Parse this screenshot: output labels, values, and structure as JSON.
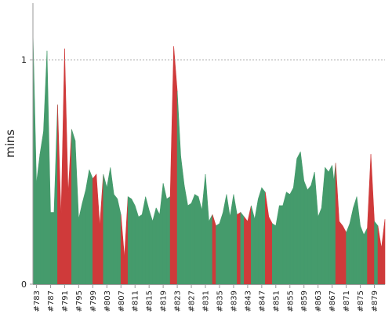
{
  "chart_data": {
    "type": "area",
    "ylabel": "mins",
    "xlabel": "",
    "title": "",
    "ylim": [
      0,
      1.2
    ],
    "yticks": [
      0,
      1
    ],
    "grid": "reference line at 1 (dashed)",
    "colors": {
      "pass": "#459b6c",
      "fail": "#cf3a3a",
      "ref_line": "#888888"
    },
    "x_tick_labels": [
      "#783",
      "#787",
      "#791",
      "#795",
      "#799",
      "#803",
      "#807",
      "#811",
      "#815",
      "#819",
      "#823",
      "#827",
      "#831",
      "#835",
      "#839",
      "#843",
      "#847",
      "#851",
      "#855",
      "#859",
      "#863",
      "#867",
      "#871",
      "#875",
      "#879"
    ],
    "x": [
      782,
      783,
      784,
      785,
      786,
      787,
      788,
      789,
      790,
      791,
      792,
      793,
      794,
      795,
      796,
      797,
      798,
      799,
      800,
      801,
      802,
      803,
      804,
      805,
      806,
      807,
      808,
      809,
      810,
      811,
      812,
      813,
      814,
      815,
      816,
      817,
      818,
      819,
      820,
      821,
      822,
      823,
      824,
      825,
      826,
      827,
      828,
      829,
      830,
      831,
      832,
      833,
      834,
      835,
      836,
      837,
      838,
      839,
      840,
      841,
      842,
      843,
      844,
      845,
      846,
      847,
      848,
      849,
      850,
      851,
      852,
      853,
      854,
      855,
      856,
      857,
      858,
      859,
      860,
      861,
      862,
      863,
      864,
      865,
      866,
      867,
      867.5,
      868,
      869,
      870,
      871,
      872,
      873,
      874,
      875,
      876,
      877,
      878,
      879,
      880,
      881,
      882
    ],
    "values": [
      1.13,
      0.45,
      0.58,
      0.68,
      1.04,
      0.32,
      0.32,
      0.8,
      0.3,
      1.05,
      0.4,
      0.69,
      0.64,
      0.29,
      0.36,
      0.42,
      0.51,
      0.47,
      0.49,
      0.26,
      0.49,
      0.43,
      0.52,
      0.4,
      0.38,
      0.31,
      0.12,
      0.39,
      0.38,
      0.35,
      0.3,
      0.31,
      0.39,
      0.33,
      0.28,
      0.34,
      0.31,
      0.45,
      0.38,
      0.39,
      1.06,
      0.86,
      0.57,
      0.44,
      0.35,
      0.36,
      0.4,
      0.39,
      0.33,
      0.49,
      0.28,
      0.31,
      0.26,
      0.27,
      0.32,
      0.4,
      0.3,
      0.4,
      0.31,
      0.32,
      0.3,
      0.28,
      0.35,
      0.29,
      0.38,
      0.43,
      0.41,
      0.3,
      0.27,
      0.26,
      0.35,
      0.35,
      0.41,
      0.4,
      0.43,
      0.56,
      0.59,
      0.46,
      0.42,
      0.44,
      0.5,
      0.3,
      0.34,
      0.52,
      0.5,
      0.53,
      0.46,
      0.54,
      0.28,
      0.26,
      0.23,
      0.27,
      0.34,
      0.39,
      0.26,
      0.22,
      0.25,
      0.58,
      0.28,
      0.26,
      0.16,
      0.29
    ],
    "status": [
      "pass",
      "pass",
      "pass",
      "pass",
      "pass",
      "pass",
      "pass",
      "fail",
      "fail",
      "fail",
      "fail",
      "pass",
      "pass",
      "pass",
      "pass",
      "pass",
      "pass",
      "fail",
      "fail",
      "fail",
      "pass",
      "pass",
      "pass",
      "pass",
      "pass",
      "fail",
      "fail",
      "pass",
      "pass",
      "pass",
      "pass",
      "pass",
      "pass",
      "pass",
      "pass",
      "pass",
      "pass",
      "pass",
      "pass",
      "fail",
      "fail",
      "pass",
      "pass",
      "pass",
      "pass",
      "pass",
      "pass",
      "pass",
      "pass",
      "pass",
      "pass",
      "fail",
      "pass",
      "pass",
      "pass",
      "pass",
      "pass",
      "pass",
      "fail",
      "pass",
      "fail",
      "fail",
      "pass",
      "pass",
      "pass",
      "pass",
      "fail",
      "fail",
      "pass",
      "pass",
      "pass",
      "pass",
      "pass",
      "pass",
      "pass",
      "pass",
      "pass",
      "pass",
      "pass",
      "pass",
      "pass",
      "pass",
      "pass",
      "pass",
      "pass",
      "pass",
      "pass",
      "fail",
      "fail",
      "fail",
      "pass",
      "pass",
      "pass",
      "pass",
      "pass",
      "pass",
      "fail",
      "fail",
      "pass",
      "fail",
      "fail",
      "pass"
    ]
  }
}
